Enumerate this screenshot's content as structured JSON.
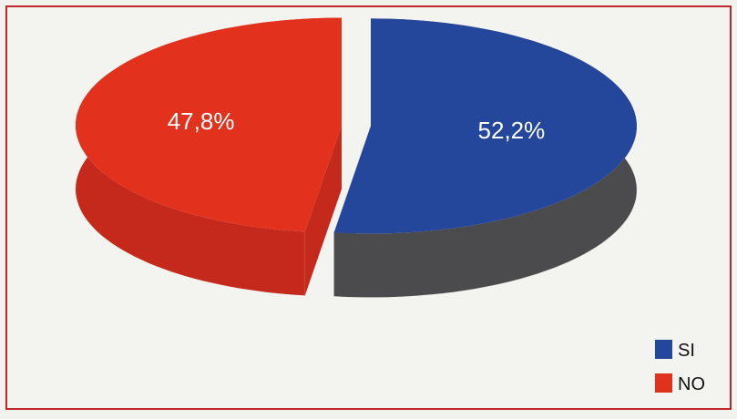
{
  "chart_data": {
    "type": "pie",
    "style": "3d-exploded",
    "categories": [
      "SI",
      "NO"
    ],
    "values": [
      52.2,
      47.8
    ],
    "value_labels": [
      "52,2%",
      "47,8%"
    ],
    "colors": {
      "SI": "#24479c",
      "NO": "#e2321e"
    },
    "side_colors": {
      "SI": "#4b4b4d",
      "NO": "#c4291b"
    },
    "frame_border_color": "#c0272d",
    "legend": {
      "position": "bottom-right",
      "entries": [
        "SI",
        "NO"
      ]
    },
    "title": "",
    "xlabel": "",
    "ylabel": ""
  }
}
